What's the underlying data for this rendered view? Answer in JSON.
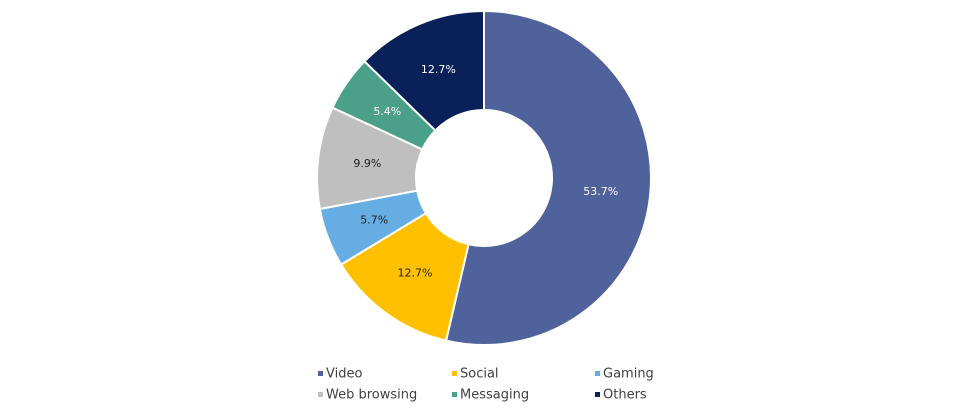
{
  "chart_data": {
    "type": "pie",
    "subtype": "donut",
    "title": "",
    "categories": [
      "Video",
      "Social",
      "Gaming",
      "Web browsing",
      "Messaging",
      "Others"
    ],
    "values": [
      53.7,
      12.7,
      5.7,
      9.9,
      5.4,
      12.7
    ],
    "labels": [
      "53.7%",
      "12.7%",
      "5.7%",
      "9.9%",
      "5.4%",
      "12.7%"
    ],
    "colors": [
      "#50629b",
      "#ffc000",
      "#65ade3",
      "#bfbfbf",
      "#4ba08a",
      "#0a2059"
    ],
    "label_colors": [
      "#ffffff",
      "#222222",
      "#222222",
      "#222222",
      "#ffffff",
      "#ffffff"
    ],
    "legend_position": "bottom"
  }
}
